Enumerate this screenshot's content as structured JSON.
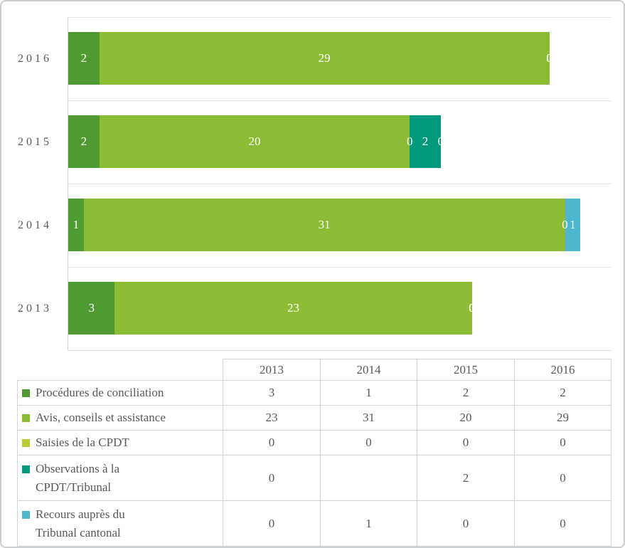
{
  "chart_data": {
    "type": "bar",
    "subtype": "horizontal-stacked",
    "title": "",
    "axis_categories": [
      "2016",
      "2015",
      "2014",
      "2013"
    ],
    "table_years": [
      "2013",
      "2014",
      "2015",
      "2016"
    ],
    "xlim": [
      0,
      35
    ],
    "grid": "horizontal category-boundary gridlines, no vertical gridlines",
    "legend_position": "data-table-left-column",
    "value_labels": "white, centered inside segments (zeros drawn at segment boundary)",
    "series": [
      {
        "name": "Procédures de conciliation",
        "name_lines": [
          "Procédures de conciliation"
        ],
        "color": "#4f9a31",
        "values": [
          3,
          1,
          2,
          2
        ]
      },
      {
        "name": "Avis, conseils et assistance",
        "name_lines": [
          "Avis, conseils et assistance"
        ],
        "color": "#8cbb34",
        "values": [
          23,
          31,
          20,
          29
        ]
      },
      {
        "name": "Saisies de la CPDT",
        "name_lines": [
          "Saisies de la CPDT"
        ],
        "color": "#bccb32",
        "values": [
          0,
          0,
          0,
          0
        ]
      },
      {
        "name": "Observations à la CPDT/Tribunal",
        "name_lines": [
          "Observations à la",
          "CPDT/Tribunal"
        ],
        "color": "#00997b",
        "values": [
          0,
          null,
          2,
          0
        ]
      },
      {
        "name": "Recours auprès du Tribunal cantonal",
        "name_lines": [
          "Recours auprès du",
          "Tribunal cantonal"
        ],
        "color": "#4db8cd",
        "values": [
          0,
          1,
          0,
          0
        ]
      }
    ]
  },
  "colors": {
    "bar_value_label": "#ffffff",
    "axis_text": "#595959",
    "table_text": "#595959",
    "gridline": "#e2e2e2",
    "table_border": "#d4d4d4",
    "frame_border": "#cbced0"
  }
}
